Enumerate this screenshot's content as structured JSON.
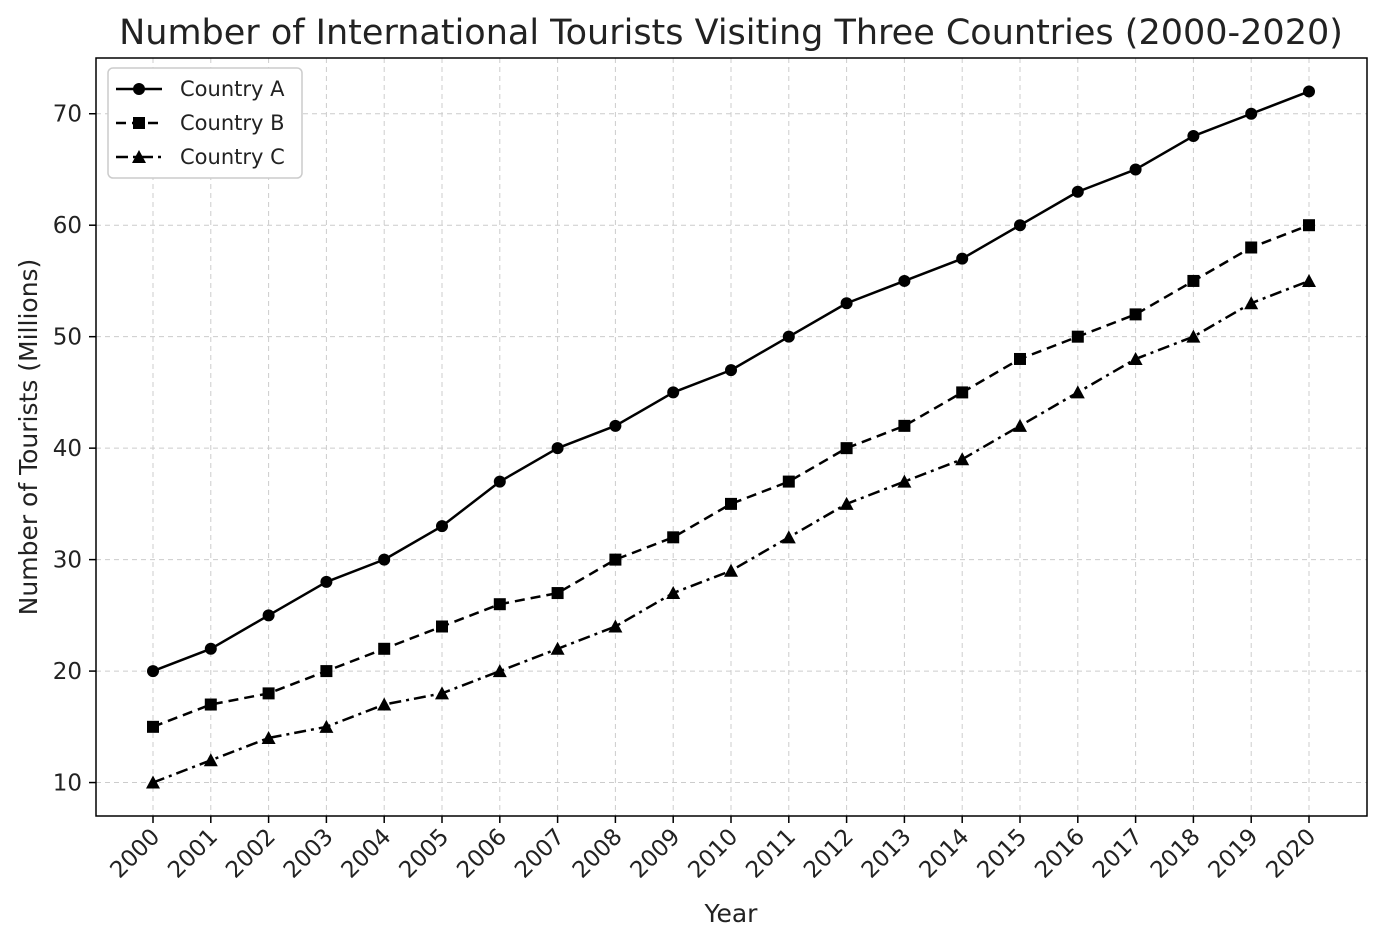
{
  "chart_data": {
    "type": "line",
    "title": "Number of International Tourists Visiting Three Countries (2000-2020)",
    "xlabel": "Year",
    "ylabel": "Number of Tourists (Millions)",
    "x": [
      "2000",
      "2001",
      "2002",
      "2003",
      "2004",
      "2005",
      "2006",
      "2007",
      "2008",
      "2009",
      "2010",
      "2011",
      "2012",
      "2013",
      "2014",
      "2015",
      "2016",
      "2017",
      "2018",
      "2019",
      "2020"
    ],
    "yticks": [
      10,
      20,
      30,
      40,
      50,
      60,
      70
    ],
    "ylim": [
      7,
      75
    ],
    "grid": true,
    "legend_position": "top-left",
    "series": [
      {
        "name": "Country A",
        "line_style": "solid",
        "marker": "circle",
        "color": "#000000",
        "values": [
          20,
          22,
          25,
          28,
          30,
          33,
          37,
          40,
          42,
          45,
          47,
          50,
          53,
          55,
          57,
          60,
          63,
          65,
          68,
          70,
          72
        ]
      },
      {
        "name": "Country B",
        "line_style": "dashed",
        "marker": "square",
        "color": "#000000",
        "values": [
          15,
          17,
          18,
          20,
          22,
          24,
          26,
          27,
          30,
          32,
          35,
          37,
          40,
          42,
          45,
          48,
          50,
          52,
          55,
          58,
          60
        ]
      },
      {
        "name": "Country C",
        "line_style": "dash-dot",
        "marker": "triangle",
        "color": "#000000",
        "values": [
          10,
          12,
          14,
          15,
          17,
          18,
          20,
          22,
          24,
          27,
          29,
          32,
          35,
          37,
          39,
          42,
          45,
          48,
          50,
          53,
          55
        ]
      }
    ]
  }
}
